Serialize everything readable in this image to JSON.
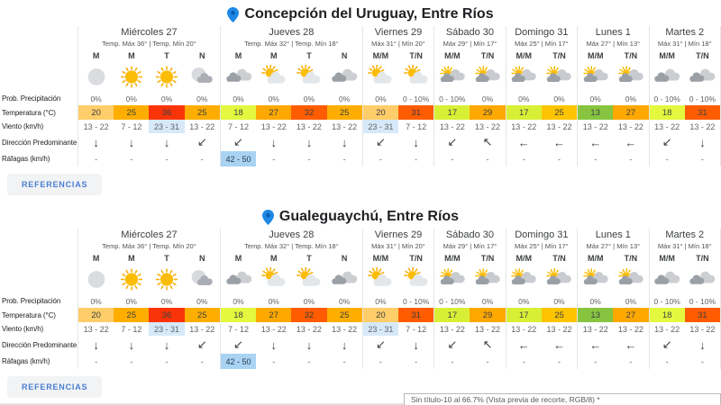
{
  "colors": {
    "accent_blue": "#1e88e5",
    "wind_highlight": "#d7e9f9",
    "gust_highlight": "#a9d3f2",
    "button_bg": "#f1f3f4",
    "button_text": "#4a7fd4"
  },
  "row_labels": [
    "Prob. Precipitación",
    "Temperatura (°C)",
    "Viento (km/h)",
    "Dirección Predominante",
    "Ráfagas (km/h)"
  ],
  "references_label": "REFERENCIAS",
  "window_bar_text": "Sin título-10 al 66.7% (Vista previa de recorte, RGB/8) *",
  "sections": [
    {
      "city": "Concepción del Uruguay, Entre Ríos",
      "days": [
        {
          "name": "Miércoles 27",
          "range": "Temp. Máx 36° | Temp. Mín 20°",
          "periods": [
            "M",
            "M",
            "T",
            "N"
          ],
          "icons": [
            "moon",
            "sun",
            "sun",
            "moon-cloud"
          ],
          "precip": [
            "0%",
            "0%",
            "0%",
            "0%"
          ],
          "temps": [
            {
              "value": "20",
              "color": "#ffcd69"
            },
            {
              "value": "25",
              "color": "#ffae00"
            },
            {
              "value": "36",
              "color": "#fa3408"
            },
            {
              "value": "25",
              "color": "#ffae00"
            }
          ],
          "wind": [
            {
              "value": "13 - 22",
              "highlight": false
            },
            {
              "value": "7 - 12",
              "highlight": false
            },
            {
              "value": "23 - 31",
              "highlight": true
            },
            {
              "value": "13 - 22",
              "highlight": false
            }
          ],
          "directions": [
            "↓",
            "↓",
            "↓",
            "↙"
          ],
          "gusts": [
            {
              "value": "-",
              "highlight": false
            },
            {
              "value": "-",
              "highlight": false
            },
            {
              "value": "-",
              "highlight": false
            },
            {
              "value": "-",
              "highlight": false
            }
          ]
        },
        {
          "name": "Jueves 28",
          "range": "Temp. Máx 32° | Temp. Mín 18°",
          "periods": [
            "M",
            "M",
            "T",
            "N"
          ],
          "icons": [
            "cloud",
            "sun-cloud",
            "sun-cloud",
            "cloud"
          ],
          "precip": [
            "0%",
            "0%",
            "0%",
            "0%"
          ],
          "temps": [
            {
              "value": "18",
              "color": "#e3f83e"
            },
            {
              "value": "27",
              "color": "#ffa800"
            },
            {
              "value": "32",
              "color": "#ff5c00"
            },
            {
              "value": "25",
              "color": "#ffae00"
            }
          ],
          "wind": [
            {
              "value": "7 - 12",
              "highlight": false
            },
            {
              "value": "13 - 22",
              "highlight": false
            },
            {
              "value": "13 - 22",
              "highlight": false
            },
            {
              "value": "13 - 22",
              "highlight": false
            }
          ],
          "directions": [
            "↙",
            "↓",
            "↓",
            "↓"
          ],
          "gusts": [
            {
              "value": "42 - 50",
              "highlight": true
            },
            {
              "value": "-",
              "highlight": false
            },
            {
              "value": "-",
              "highlight": false
            },
            {
              "value": "-",
              "highlight": false
            }
          ]
        },
        {
          "name": "Viernes 29",
          "range": "Máx 31° | Mín 20°",
          "periods": [
            "M/M",
            "T/N"
          ],
          "icons": [
            "sun-cloud",
            "sun-cloud"
          ],
          "precip": [
            "0%",
            "0 - 10%"
          ],
          "temps": [
            {
              "value": "20",
              "color": "#ffcd69"
            },
            {
              "value": "31",
              "color": "#ff5c00"
            }
          ],
          "wind": [
            {
              "value": "23 - 31",
              "highlight": true
            },
            {
              "value": "7 - 12",
              "highlight": false
            }
          ],
          "directions": [
            "↙",
            "↓"
          ],
          "gusts": [
            {
              "value": "-",
              "highlight": false
            },
            {
              "value": "-",
              "highlight": false
            }
          ]
        },
        {
          "name": "Sábado 30",
          "range": "Máx 29° | Mín 17°",
          "periods": [
            "M/M",
            "T/N"
          ],
          "icons": [
            "sun-clouds",
            "sun-clouds"
          ],
          "precip": [
            "0 - 10%",
            "0%"
          ],
          "temps": [
            {
              "value": "17",
              "color": "#d9ef36"
            },
            {
              "value": "29",
              "color": "#ffa800"
            }
          ],
          "wind": [
            {
              "value": "13 - 22",
              "highlight": false
            },
            {
              "value": "13 - 22",
              "highlight": false
            }
          ],
          "directions": [
            "↙",
            "↖"
          ],
          "gusts": [
            {
              "value": "-",
              "highlight": false
            },
            {
              "value": "-",
              "highlight": false
            }
          ]
        },
        {
          "name": "Domingo 31",
          "range": "Máx 25° | Mín 17°",
          "periods": [
            "M/M",
            "T/N"
          ],
          "icons": [
            "sun-clouds",
            "sun-clouds"
          ],
          "precip": [
            "0%",
            "0%"
          ],
          "temps": [
            {
              "value": "17",
              "color": "#d9ef36"
            },
            {
              "value": "25",
              "color": "#ffc400"
            }
          ],
          "wind": [
            {
              "value": "13 - 22",
              "highlight": false
            },
            {
              "value": "13 - 22",
              "highlight": false
            }
          ],
          "directions": [
            "←",
            "←"
          ],
          "gusts": [
            {
              "value": "-",
              "highlight": false
            },
            {
              "value": "-",
              "highlight": false
            }
          ]
        },
        {
          "name": "Lunes 1",
          "range": "Máx 27° | Mín 13°",
          "periods": [
            "M/M",
            "T/N"
          ],
          "icons": [
            "sun-clouds",
            "sun-clouds"
          ],
          "precip": [
            "0%",
            "0%"
          ],
          "temps": [
            {
              "value": "13",
              "color": "#87c540"
            },
            {
              "value": "27",
              "color": "#ffa800"
            }
          ],
          "wind": [
            {
              "value": "13 - 22",
              "highlight": false
            },
            {
              "value": "13 - 22",
              "highlight": false
            }
          ],
          "directions": [
            "←",
            "←"
          ],
          "gusts": [
            {
              "value": "-",
              "highlight": false
            },
            {
              "value": "-",
              "highlight": false
            }
          ]
        },
        {
          "name": "Martes 2",
          "range": "Máx 31° | Mín 18°",
          "periods": [
            "M/M",
            "T/N"
          ],
          "icons": [
            "cloud",
            "cloud"
          ],
          "precip": [
            "0 - 10%",
            "0 - 10%"
          ],
          "temps": [
            {
              "value": "18",
              "color": "#e3f83e"
            },
            {
              "value": "31",
              "color": "#ff5c00"
            }
          ],
          "wind": [
            {
              "value": "13 - 22",
              "highlight": false
            },
            {
              "value": "13 - 22",
              "highlight": false
            }
          ],
          "directions": [
            "↙",
            "↓"
          ],
          "gusts": [
            {
              "value": "-",
              "highlight": false
            },
            {
              "value": "-",
              "highlight": false
            }
          ]
        }
      ]
    },
    {
      "city": "Gualeguaychú, Entre Ríos",
      "days": [
        {
          "name": "Miércoles 27",
          "range": "Temp. Máx 36° | Temp. Mín 20°",
          "periods": [
            "M",
            "M",
            "T",
            "N"
          ],
          "icons": [
            "moon",
            "sun",
            "sun",
            "moon-cloud"
          ],
          "precip": [
            "0%",
            "0%",
            "0%",
            "0%"
          ],
          "temps": [
            {
              "value": "20",
              "color": "#ffcd69"
            },
            {
              "value": "25",
              "color": "#ffae00"
            },
            {
              "value": "36",
              "color": "#fa3408"
            },
            {
              "value": "25",
              "color": "#ffae00"
            }
          ],
          "wind": [
            {
              "value": "13 - 22",
              "highlight": false
            },
            {
              "value": "7 - 12",
              "highlight": false
            },
            {
              "value": "23 - 31",
              "highlight": true
            },
            {
              "value": "13 - 22",
              "highlight": false
            }
          ],
          "directions": [
            "↓",
            "↓",
            "↓",
            "↙"
          ],
          "gusts": [
            {
              "value": "-",
              "highlight": false
            },
            {
              "value": "-",
              "highlight": false
            },
            {
              "value": "-",
              "highlight": false
            },
            {
              "value": "-",
              "highlight": false
            }
          ]
        },
        {
          "name": "Jueves 28",
          "range": "Temp. Máx 32° | Temp. Mín 18°",
          "periods": [
            "M",
            "M",
            "T",
            "N"
          ],
          "icons": [
            "cloud",
            "sun-cloud",
            "sun-cloud",
            "cloud"
          ],
          "precip": [
            "0%",
            "0%",
            "0%",
            "0%"
          ],
          "temps": [
            {
              "value": "18",
              "color": "#e3f83e"
            },
            {
              "value": "27",
              "color": "#ffa800"
            },
            {
              "value": "32",
              "color": "#ff5c00"
            },
            {
              "value": "25",
              "color": "#ffae00"
            }
          ],
          "wind": [
            {
              "value": "7 - 12",
              "highlight": false
            },
            {
              "value": "13 - 22",
              "highlight": false
            },
            {
              "value": "13 - 22",
              "highlight": false
            },
            {
              "value": "13 - 22",
              "highlight": false
            }
          ],
          "directions": [
            "↙",
            "↓",
            "↓",
            "↓"
          ],
          "gusts": [
            {
              "value": "42 - 50",
              "highlight": true
            },
            {
              "value": "-",
              "highlight": false
            },
            {
              "value": "-",
              "highlight": false
            },
            {
              "value": "-",
              "highlight": false
            }
          ]
        },
        {
          "name": "Viernes 29",
          "range": "Máx 31° | Mín 20°",
          "periods": [
            "M/M",
            "T/N"
          ],
          "icons": [
            "sun-cloud",
            "sun-cloud"
          ],
          "precip": [
            "0%",
            "0 - 10%"
          ],
          "temps": [
            {
              "value": "20",
              "color": "#ffcd69"
            },
            {
              "value": "31",
              "color": "#ff5c00"
            }
          ],
          "wind": [
            {
              "value": "23 - 31",
              "highlight": true
            },
            {
              "value": "7 - 12",
              "highlight": false
            }
          ],
          "directions": [
            "↙",
            "↓"
          ],
          "gusts": [
            {
              "value": "-",
              "highlight": false
            },
            {
              "value": "-",
              "highlight": false
            }
          ]
        },
        {
          "name": "Sábado 30",
          "range": "Máx 29° | Mín 17°",
          "periods": [
            "M/M",
            "T/N"
          ],
          "icons": [
            "sun-clouds",
            "sun-clouds"
          ],
          "precip": [
            "0 - 10%",
            "0%"
          ],
          "temps": [
            {
              "value": "17",
              "color": "#d9ef36"
            },
            {
              "value": "29",
              "color": "#ffa800"
            }
          ],
          "wind": [
            {
              "value": "13 - 22",
              "highlight": false
            },
            {
              "value": "13 - 22",
              "highlight": false
            }
          ],
          "directions": [
            "↙",
            "↖"
          ],
          "gusts": [
            {
              "value": "-",
              "highlight": false
            },
            {
              "value": "-",
              "highlight": false
            }
          ]
        },
        {
          "name": "Domingo 31",
          "range": "Máx 25° | Mín 17°",
          "periods": [
            "M/M",
            "T/N"
          ],
          "icons": [
            "sun-clouds",
            "sun-clouds"
          ],
          "precip": [
            "0%",
            "0%"
          ],
          "temps": [
            {
              "value": "17",
              "color": "#d9ef36"
            },
            {
              "value": "25",
              "color": "#ffc400"
            }
          ],
          "wind": [
            {
              "value": "13 - 22",
              "highlight": false
            },
            {
              "value": "13 - 22",
              "highlight": false
            }
          ],
          "directions": [
            "←",
            "←"
          ],
          "gusts": [
            {
              "value": "-",
              "highlight": false
            },
            {
              "value": "-",
              "highlight": false
            }
          ]
        },
        {
          "name": "Lunes 1",
          "range": "Máx 27° | Mín 13°",
          "periods": [
            "M/M",
            "T/N"
          ],
          "icons": [
            "sun-clouds",
            "sun-clouds"
          ],
          "precip": [
            "0%",
            "0%"
          ],
          "temps": [
            {
              "value": "13",
              "color": "#87c540"
            },
            {
              "value": "27",
              "color": "#ffa800"
            }
          ],
          "wind": [
            {
              "value": "13 - 22",
              "highlight": false
            },
            {
              "value": "13 - 22",
              "highlight": false
            }
          ],
          "directions": [
            "←",
            "←"
          ],
          "gusts": [
            {
              "value": "-",
              "highlight": false
            },
            {
              "value": "-",
              "highlight": false
            }
          ]
        },
        {
          "name": "Martes 2",
          "range": "Máx 31° | Mín 18°",
          "periods": [
            "M/M",
            "T/N"
          ],
          "icons": [
            "cloud",
            "cloud"
          ],
          "precip": [
            "0 - 10%",
            "0 - 10%"
          ],
          "temps": [
            {
              "value": "18",
              "color": "#e3f83e"
            },
            {
              "value": "31",
              "color": "#ff5c00"
            }
          ],
          "wind": [
            {
              "value": "13 - 22",
              "highlight": false
            },
            {
              "value": "13 - 22",
              "highlight": false
            }
          ],
          "directions": [
            "↙",
            "↓"
          ],
          "gusts": [
            {
              "value": "-",
              "highlight": false
            },
            {
              "value": "-",
              "highlight": false
            }
          ]
        }
      ]
    }
  ]
}
